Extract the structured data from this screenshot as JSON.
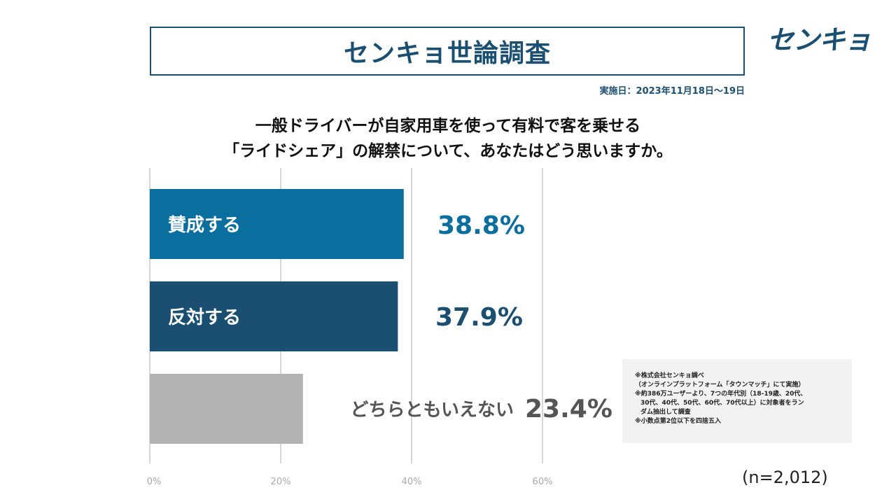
{
  "header": {
    "title": "センキョ世論調査",
    "logo_text": "センキョ",
    "survey_date": "実施日：2023年11月18日～19日"
  },
  "question": {
    "line1": "一般ドライバーが自家用車を使って有料で客を乗せる",
    "line2": "「ライドシェア」の解禁について、あなたはどう思いますか。"
  },
  "chart_data": {
    "type": "bar",
    "orientation": "horizontal",
    "categories": [
      "賛成する",
      "反対する",
      "どちらともいえない"
    ],
    "values": [
      38.8,
      37.9,
      23.4
    ],
    "value_labels": [
      "38.8%",
      "37.9%",
      "23.4%"
    ],
    "colors": [
      "#0a6f9e",
      "#1b4f72",
      "#b3b3b3"
    ],
    "label_colors": [
      "#0a6f9e",
      "#1b4f72",
      "#555555"
    ],
    "xlim": [
      0,
      60
    ],
    "xticks": [
      0,
      20,
      40,
      60
    ],
    "xtick_labels": [
      "0%",
      "20%",
      "40%",
      "60%"
    ],
    "grid": true
  },
  "notes": [
    "※株式会社センキョ調べ",
    "（オンラインプラットフォーム「タウンマッチ」にて実施）",
    "※約386万ユーザーより、7つの年代別（18-19歳、20代、",
    "30代、40代、50代、60代、70代以上）に対象者をラン",
    "ダム抽出して調査",
    "※小数点第2位以下を四捨五入"
  ],
  "sample_size": "(n=2,012)"
}
